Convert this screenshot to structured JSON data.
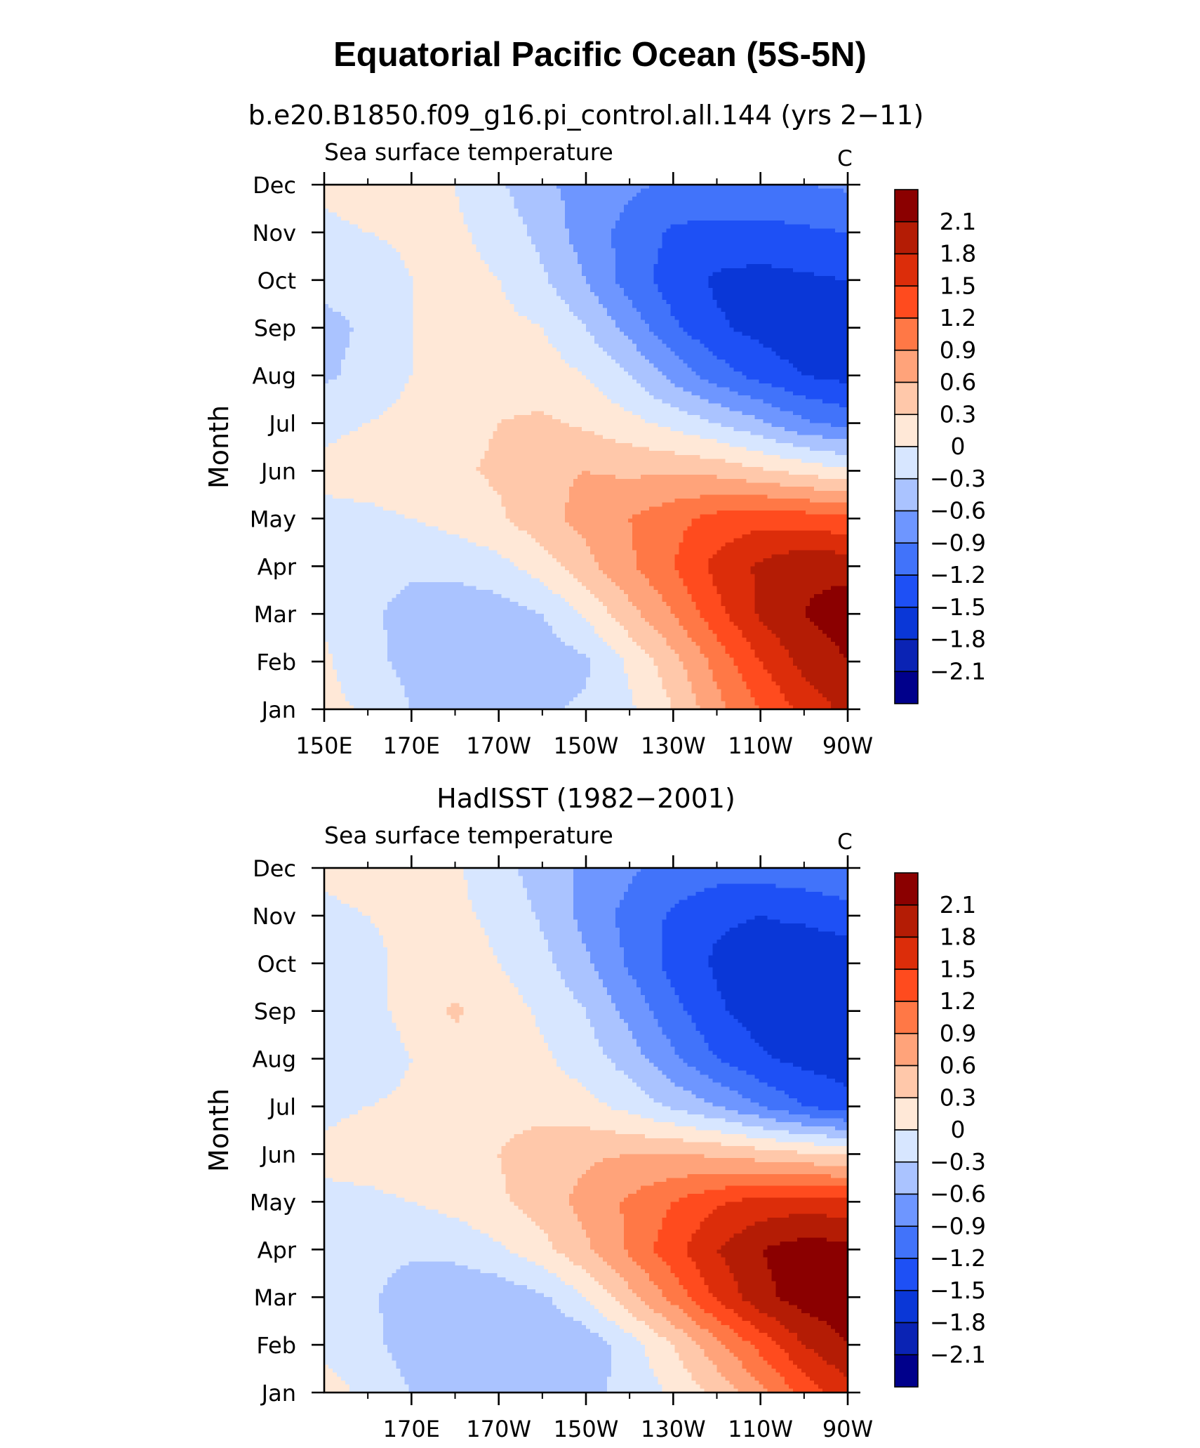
{
  "title": "Equatorial Pacific Ocean (5S-5N)",
  "chart_data": [
    {
      "type": "heatmap",
      "panel_title": "b.e20.B1850.f09_g16.pi_control.all.144 (yrs 2−11)",
      "variable": "Sea surface temperature",
      "units": "C",
      "xlabel": "",
      "ylabel": "Month",
      "x_ticks": [
        "150E",
        "170E",
        "170W",
        "150W",
        "130W",
        "110W",
        "90W"
      ],
      "x_tick_lons": [
        150,
        170,
        190,
        210,
        230,
        250,
        270
      ],
      "y_ticks": [
        "Jan",
        "Feb",
        "Mar",
        "Apr",
        "May",
        "Jun",
        "Jul",
        "Aug",
        "Sep",
        "Oct",
        "Nov",
        "Dec"
      ],
      "xlim": [
        150,
        270
      ],
      "ylim": [
        "Jan",
        "Dec"
      ],
      "contour_levels": [
        -2.1,
        -1.8,
        -1.5,
        -1.2,
        -0.9,
        -0.6,
        -0.3,
        0,
        0.3,
        0.6,
        0.9,
        1.2,
        1.5,
        1.8,
        2.1
      ],
      "colorbar_labels": [
        "2.1",
        "1.8",
        "1.5",
        "1.2",
        "0.9",
        "0.6",
        "0.3",
        "0",
        "−0.3",
        "−0.6",
        "−0.9",
        "−1.2",
        "−1.5",
        "−1.8",
        "−2.1"
      ],
      "x": [
        150,
        160,
        170,
        180,
        190,
        200,
        210,
        220,
        230,
        240,
        250,
        260,
        270
      ],
      "y": [
        "Jan",
        "Feb",
        "Mar",
        "Apr",
        "May",
        "Jun",
        "Jul",
        "Aug",
        "Sep",
        "Oct",
        "Nov",
        "Dec"
      ],
      "z": [
        [
          0.1,
          -0.05,
          -0.3,
          -0.4,
          -0.4,
          -0.35,
          -0.25,
          -0.05,
          0.3,
          0.8,
          1.2,
          1.6,
          1.9
        ],
        [
          0.05,
          -0.2,
          -0.4,
          -0.5,
          -0.55,
          -0.5,
          -0.35,
          0.05,
          0.5,
          1.0,
          1.5,
          1.9,
          2.1
        ],
        [
          -0.05,
          -0.25,
          -0.4,
          -0.5,
          -0.45,
          -0.3,
          0.05,
          0.5,
          0.9,
          1.4,
          1.85,
          2.1,
          2.25
        ],
        [
          -0.15,
          -0.2,
          -0.25,
          -0.2,
          -0.1,
          0.15,
          0.5,
          0.85,
          1.2,
          1.6,
          1.85,
          2.05,
          2.0
        ],
        [
          -0.05,
          -0.05,
          0.0,
          0.1,
          0.25,
          0.5,
          0.7,
          0.9,
          1.1,
          1.3,
          1.4,
          1.35,
          1.25
        ],
        [
          0.05,
          0.1,
          0.15,
          0.25,
          0.35,
          0.55,
          0.6,
          0.55,
          0.55,
          0.5,
          0.35,
          0.2,
          0.05
        ],
        [
          -0.05,
          0.0,
          0.1,
          0.2,
          0.3,
          0.35,
          0.25,
          0.1,
          -0.1,
          -0.3,
          -0.55,
          -0.85,
          -1.0
        ],
        [
          -0.35,
          -0.2,
          0.0,
          0.15,
          0.2,
          0.15,
          0.0,
          -0.3,
          -0.7,
          -1.05,
          -1.3,
          -1.5,
          -1.6
        ],
        [
          -0.4,
          -0.25,
          0.0,
          0.1,
          0.1,
          0.0,
          -0.3,
          -0.7,
          -1.15,
          -1.45,
          -1.6,
          -1.75,
          -1.8
        ],
        [
          -0.2,
          -0.15,
          0.0,
          0.1,
          0.0,
          -0.25,
          -0.6,
          -1.05,
          -1.35,
          -1.55,
          -1.6,
          -1.55,
          -1.5
        ],
        [
          -0.05,
          0.0,
          0.05,
          0.05,
          -0.1,
          -0.4,
          -0.75,
          -1.0,
          -1.25,
          -1.3,
          -1.3,
          -1.25,
          -1.2
        ],
        [
          0.05,
          0.1,
          0.05,
          0.0,
          -0.25,
          -0.55,
          -0.7,
          -0.85,
          -0.95,
          -0.95,
          -0.95,
          -0.9,
          -0.85
        ]
      ]
    },
    {
      "type": "heatmap",
      "panel_title": "HadISST (1982−2001)",
      "variable": "Sea surface temperature",
      "units": "C",
      "xlabel": "",
      "ylabel": "Month",
      "x_ticks": [
        "170E",
        "170W",
        "150W",
        "130W",
        "110W",
        "90W"
      ],
      "x_tick_lons": [
        170,
        190,
        210,
        230,
        250,
        270
      ],
      "y_ticks": [
        "Jan",
        "Feb",
        "Mar",
        "Apr",
        "May",
        "Jun",
        "Jul",
        "Aug",
        "Sep",
        "Oct",
        "Nov",
        "Dec"
      ],
      "xlim": [
        150,
        270
      ],
      "ylim": [
        "Jan",
        "Dec"
      ],
      "contour_levels": [
        -2.1,
        -1.8,
        -1.5,
        -1.2,
        -0.9,
        -0.6,
        -0.3,
        0,
        0.3,
        0.6,
        0.9,
        1.2,
        1.5,
        1.8,
        2.1
      ],
      "colorbar_labels": [
        "2.1",
        "1.8",
        "1.5",
        "1.2",
        "0.9",
        "0.6",
        "0.3",
        "0",
        "−0.3",
        "−0.6",
        "−0.9",
        "−1.2",
        "−1.5",
        "−1.8",
        "−2.1"
      ],
      "x": [
        150,
        160,
        170,
        180,
        190,
        200,
        210,
        220,
        230,
        240,
        250,
        260,
        270
      ],
      "y": [
        "Jan",
        "Feb",
        "Mar",
        "Apr",
        "May",
        "Jun",
        "Jul",
        "Aug",
        "Sep",
        "Oct",
        "Nov",
        "Dec"
      ],
      "z": [
        [
          0.1,
          -0.05,
          -0.3,
          -0.4,
          -0.45,
          -0.45,
          -0.4,
          -0.2,
          0.05,
          0.4,
          0.8,
          1.3,
          1.7
        ],
        [
          -0.05,
          -0.2,
          -0.45,
          -0.55,
          -0.6,
          -0.6,
          -0.5,
          -0.15,
          0.3,
          0.8,
          1.3,
          1.8,
          2.1
        ],
        [
          -0.15,
          -0.25,
          -0.45,
          -0.55,
          -0.5,
          -0.35,
          0.0,
          0.5,
          1.0,
          1.55,
          2.0,
          2.25,
          2.3
        ],
        [
          -0.2,
          -0.2,
          -0.25,
          -0.2,
          -0.05,
          0.2,
          0.55,
          0.95,
          1.4,
          1.8,
          2.1,
          2.25,
          2.2
        ],
        [
          -0.05,
          -0.05,
          0.0,
          0.1,
          0.25,
          0.45,
          0.7,
          0.95,
          1.2,
          1.45,
          1.6,
          1.65,
          1.6
        ],
        [
          0.05,
          0.1,
          0.15,
          0.2,
          0.3,
          0.45,
          0.55,
          0.6,
          0.6,
          0.55,
          0.45,
          0.35,
          0.25
        ],
        [
          -0.05,
          0.0,
          0.05,
          0.15,
          0.2,
          0.2,
          0.1,
          -0.1,
          -0.35,
          -0.6,
          -0.9,
          -1.2,
          -1.4
        ],
        [
          -0.3,
          -0.15,
          0.0,
          0.15,
          0.15,
          0.05,
          -0.15,
          -0.45,
          -0.85,
          -1.2,
          -1.45,
          -1.6,
          -1.65
        ],
        [
          -0.25,
          -0.1,
          0.1,
          0.35,
          0.15,
          -0.05,
          -0.3,
          -0.7,
          -1.1,
          -1.45,
          -1.65,
          -1.75,
          -1.75
        ],
        [
          -0.15,
          -0.05,
          0.05,
          0.1,
          0.0,
          -0.2,
          -0.55,
          -0.95,
          -1.3,
          -1.55,
          -1.65,
          -1.7,
          -1.7
        ],
        [
          -0.05,
          0.0,
          0.05,
          0.05,
          -0.05,
          -0.35,
          -0.7,
          -1.0,
          -1.25,
          -1.45,
          -1.5,
          -1.45,
          -1.35
        ],
        [
          0.05,
          0.1,
          0.1,
          0.05,
          -0.2,
          -0.45,
          -0.65,
          -0.85,
          -1.0,
          -1.05,
          -1.05,
          -1.0,
          -0.9
        ]
      ]
    }
  ],
  "colors": {
    "palette": [
      "#00008b",
      "#0a23b4",
      "#0a37d7",
      "#1e50f5",
      "#4173fa",
      "#6e96ff",
      "#aac3ff",
      "#d7e6ff",
      "#ffe8d7",
      "#ffc8aa",
      "#ffa37a",
      "#ff7846",
      "#ff4b1e",
      "#dc2d0a",
      "#b41c05",
      "#8b0000"
    ],
    "axis": "#000000",
    "background": "#ffffff"
  }
}
